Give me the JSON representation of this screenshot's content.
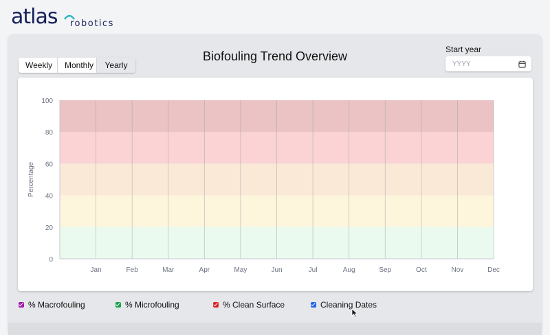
{
  "brand": {
    "logo_text": "atlas",
    "logo_sub": "robotics"
  },
  "header": {
    "title": "Biofouling Trend Overview"
  },
  "view_toggle": {
    "options": [
      "Weekly",
      "Monthly",
      "Yearly"
    ],
    "selected": "Yearly"
  },
  "start_year": {
    "label": "Start year",
    "placeholder": "YYYY",
    "value": ""
  },
  "chart_data": {
    "type": "area",
    "title": "",
    "xlabel": "",
    "ylabel": "Percentage",
    "categories": [
      "Jan",
      "Feb",
      "Mar",
      "Apr",
      "May",
      "Jun",
      "Jul",
      "Aug",
      "Sep",
      "Oct",
      "Nov",
      "Dec"
    ],
    "ylim": [
      0,
      100
    ],
    "yticks": [
      0,
      20,
      40,
      60,
      80,
      100
    ],
    "grid": "vertical",
    "bands": [
      {
        "from": 0,
        "to": 20,
        "color": "#eafaef"
      },
      {
        "from": 20,
        "to": 40,
        "color": "#fdf5dc"
      },
      {
        "from": 40,
        "to": 60,
        "color": "#fbe9d7"
      },
      {
        "from": 60,
        "to": 80,
        "color": "#fbd3d4"
      },
      {
        "from": 80,
        "to": 100,
        "color": "#ebc3c4"
      }
    ],
    "series": []
  },
  "legend": [
    {
      "label": "% Macrofouling",
      "color": "#a21caf",
      "checked": true
    },
    {
      "label": "% Microfouling",
      "color": "#16a34a",
      "checked": true
    },
    {
      "label": "% Clean Surface",
      "color": "#dc2626",
      "checked": true
    },
    {
      "label": "Cleaning Dates",
      "color": "#2563eb",
      "checked": true
    }
  ]
}
